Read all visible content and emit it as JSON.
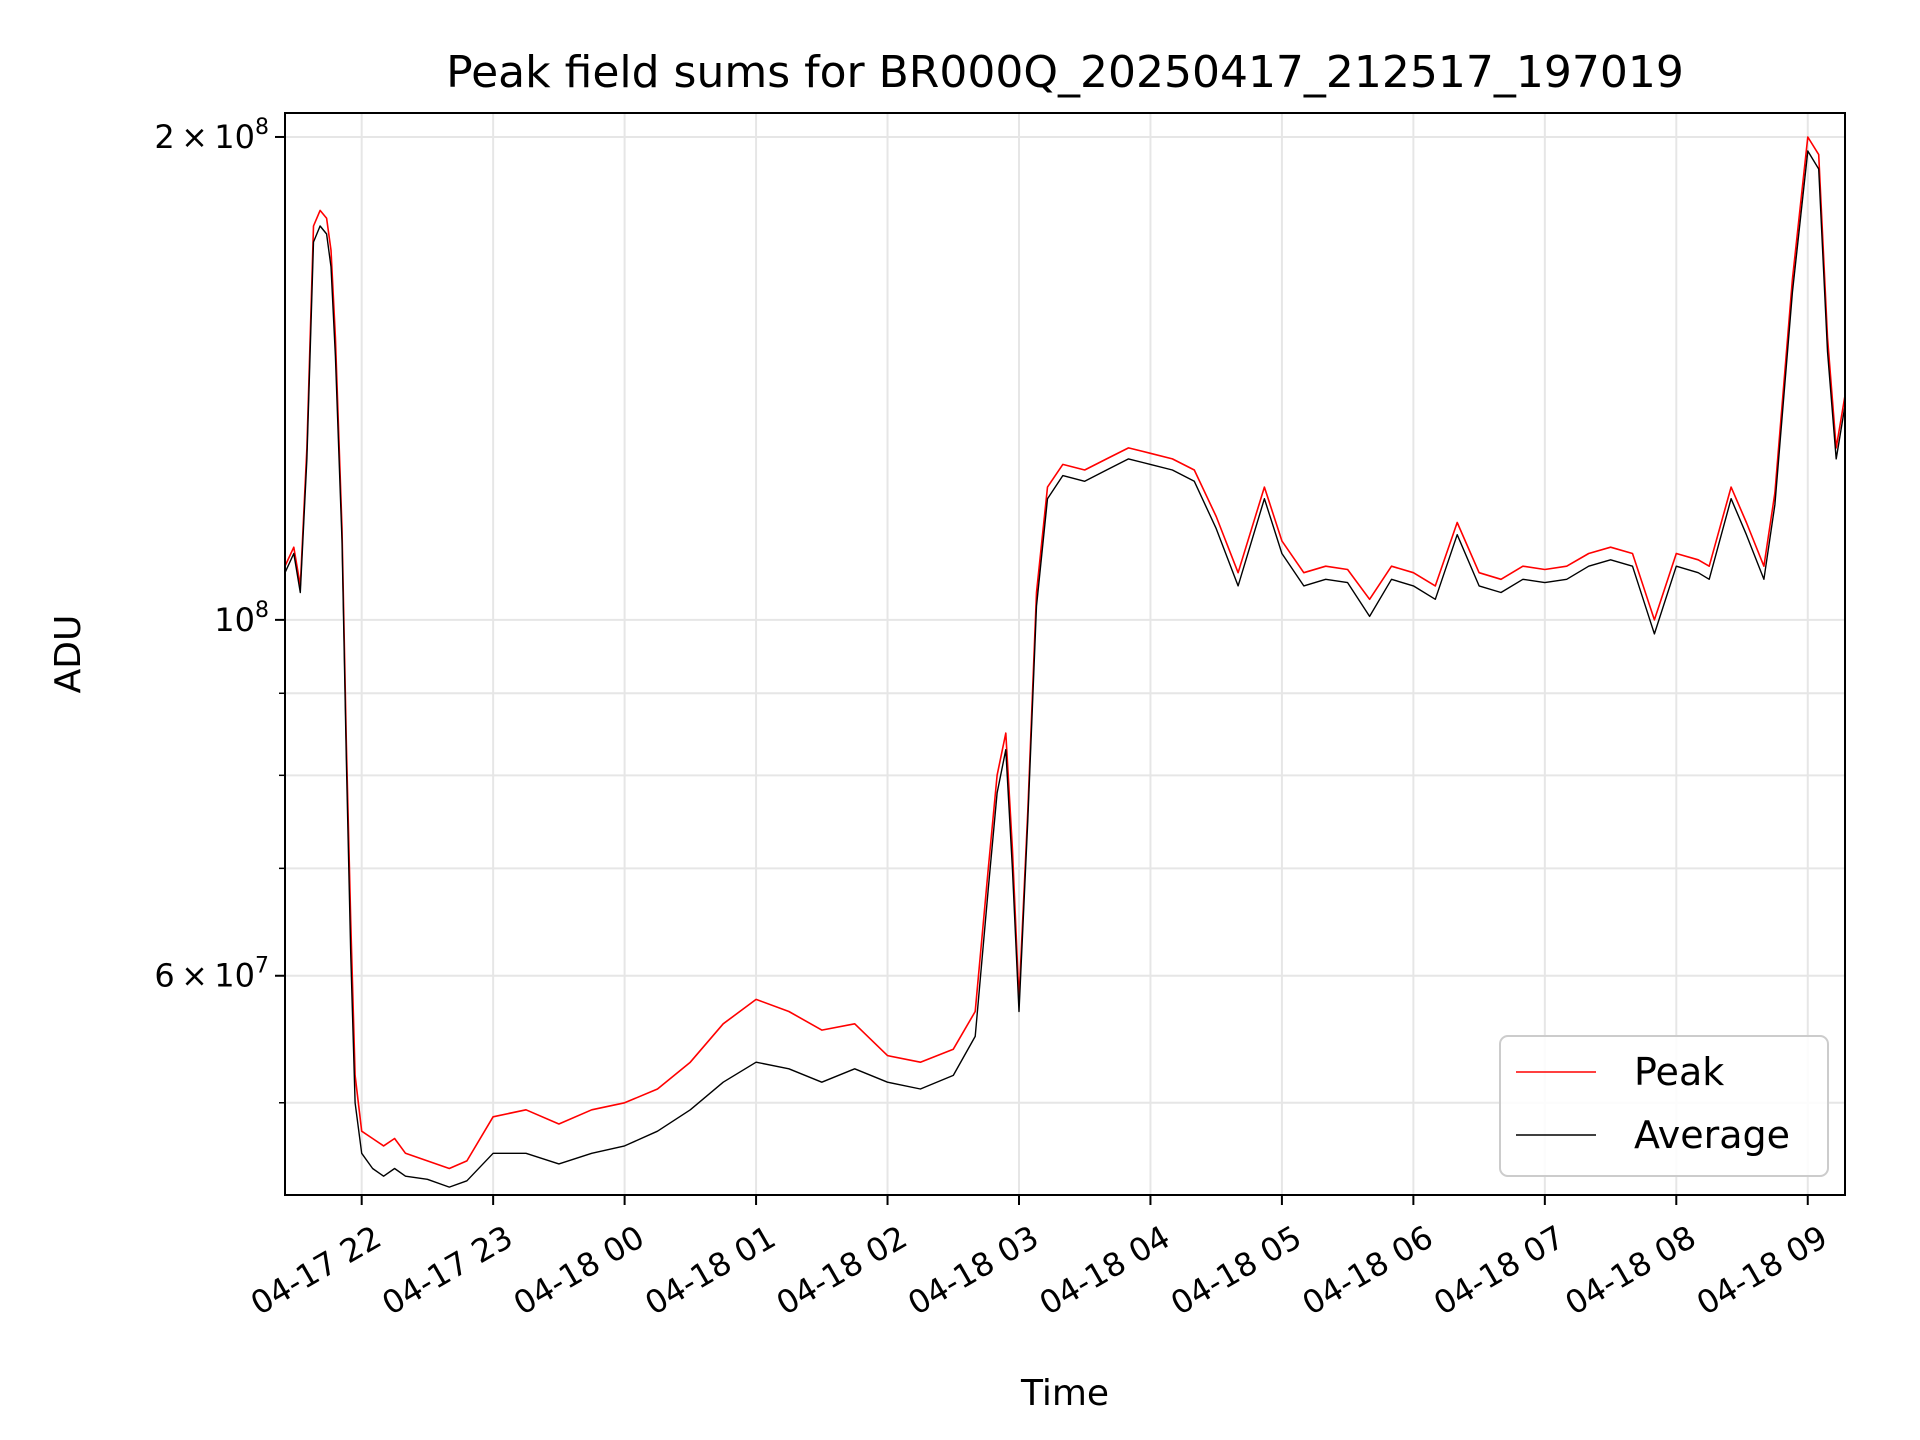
{
  "chart_data": {
    "type": "line",
    "title": "Peak field sums for BR000Q_20250417_212517_197019",
    "xlabel": "Time",
    "ylabel": "ADU",
    "y_scale": "log",
    "grid": true,
    "legend_position": "lower-right",
    "xlim": [
      "2025-04-17 21:25",
      "2025-04-18 09:17"
    ],
    "ylim": [
      43800000,
      207000000
    ],
    "x_ticks": [
      {
        "value": "2025-04-17 22:00",
        "label": "04-17 22"
      },
      {
        "value": "2025-04-17 23:00",
        "label": "04-17 23"
      },
      {
        "value": "2025-04-18 00:00",
        "label": "04-18 00"
      },
      {
        "value": "2025-04-18 01:00",
        "label": "04-18 01"
      },
      {
        "value": "2025-04-18 02:00",
        "label": "04-18 02"
      },
      {
        "value": "2025-04-18 03:00",
        "label": "04-18 03"
      },
      {
        "value": "2025-04-18 04:00",
        "label": "04-18 04"
      },
      {
        "value": "2025-04-18 05:00",
        "label": "04-18 05"
      },
      {
        "value": "2025-04-18 06:00",
        "label": "04-18 06"
      },
      {
        "value": "2025-04-18 07:00",
        "label": "04-18 07"
      },
      {
        "value": "2025-04-18 08:00",
        "label": "04-18 08"
      },
      {
        "value": "2025-04-18 09:00",
        "label": "04-18 09"
      }
    ],
    "y_major_ticks": [
      {
        "value": 60000000,
        "mantissa": "6",
        "exponent": "7"
      },
      {
        "value": 100000000,
        "mantissa": "",
        "exponent": "8"
      },
      {
        "value": 200000000,
        "mantissa": "2",
        "exponent": "8"
      }
    ],
    "y_minor_ticks": [
      50000000,
      70000000,
      80000000,
      90000000
    ],
    "times_multiply": "×",
    "times_base": "10",
    "colors": {
      "peak": "#ff0000",
      "average": "#000000",
      "grid": "#e6e6e6"
    },
    "series": [
      {
        "name": "Peak",
        "color": "#ff0000",
        "points": [
          [
            "2025-04-17 21:25",
            108000000
          ],
          [
            "2025-04-17 21:29",
            111000000
          ],
          [
            "2025-04-17 21:32",
            105000000
          ],
          [
            "2025-04-17 21:35",
            128000000
          ],
          [
            "2025-04-17 21:38",
            176000000
          ],
          [
            "2025-04-17 21:41",
            180000000
          ],
          [
            "2025-04-17 21:44",
            178000000
          ],
          [
            "2025-04-17 21:46",
            170000000
          ],
          [
            "2025-04-17 21:48",
            150000000
          ],
          [
            "2025-04-17 21:51",
            114000000
          ],
          [
            "2025-04-17 21:53",
            84000000
          ],
          [
            "2025-04-17 21:55",
            65000000
          ],
          [
            "2025-04-17 21:57",
            52000000
          ],
          [
            "2025-04-17 22:00",
            48000000
          ],
          [
            "2025-04-17 22:05",
            47500000
          ],
          [
            "2025-04-17 22:10",
            47000000
          ],
          [
            "2025-04-17 22:15",
            47500000
          ],
          [
            "2025-04-17 22:20",
            46500000
          ],
          [
            "2025-04-17 22:30",
            46000000
          ],
          [
            "2025-04-17 22:40",
            45500000
          ],
          [
            "2025-04-17 22:48",
            46000000
          ],
          [
            "2025-04-17 23:00",
            49000000
          ],
          [
            "2025-04-17 23:15",
            49500000
          ],
          [
            "2025-04-17 23:30",
            48500000
          ],
          [
            "2025-04-17 23:45",
            49500000
          ],
          [
            "2025-04-18 00:00",
            50000000
          ],
          [
            "2025-04-18 00:15",
            51000000
          ],
          [
            "2025-04-18 00:30",
            53000000
          ],
          [
            "2025-04-18 00:45",
            56000000
          ],
          [
            "2025-04-18 01:00",
            58000000
          ],
          [
            "2025-04-18 01:15",
            57000000
          ],
          [
            "2025-04-18 01:30",
            55500000
          ],
          [
            "2025-04-18 01:45",
            56000000
          ],
          [
            "2025-04-18 02:00",
            53500000
          ],
          [
            "2025-04-18 02:15",
            53000000
          ],
          [
            "2025-04-18 02:30",
            54000000
          ],
          [
            "2025-04-18 02:40",
            57000000
          ],
          [
            "2025-04-18 02:46",
            70000000
          ],
          [
            "2025-04-18 02:50",
            80000000
          ],
          [
            "2025-04-18 02:54",
            85000000
          ],
          [
            "2025-04-18 02:57",
            72000000
          ],
          [
            "2025-04-18 03:00",
            58000000
          ],
          [
            "2025-04-18 03:04",
            76000000
          ],
          [
            "2025-04-18 03:08",
            104000000
          ],
          [
            "2025-04-18 03:13",
            121000000
          ],
          [
            "2025-04-18 03:20",
            125000000
          ],
          [
            "2025-04-18 03:30",
            124000000
          ],
          [
            "2025-04-18 03:40",
            126000000
          ],
          [
            "2025-04-18 03:50",
            128000000
          ],
          [
            "2025-04-18 04:00",
            127000000
          ],
          [
            "2025-04-18 04:10",
            126000000
          ],
          [
            "2025-04-18 04:20",
            124000000
          ],
          [
            "2025-04-18 04:30",
            116000000
          ],
          [
            "2025-04-18 04:40",
            107000000
          ],
          [
            "2025-04-18 04:52",
            121000000
          ],
          [
            "2025-04-18 05:00",
            112000000
          ],
          [
            "2025-04-18 05:10",
            107000000
          ],
          [
            "2025-04-18 05:20",
            108000000
          ],
          [
            "2025-04-18 05:30",
            107500000
          ],
          [
            "2025-04-18 05:40",
            103000000
          ],
          [
            "2025-04-18 05:50",
            108000000
          ],
          [
            "2025-04-18 06:00",
            107000000
          ],
          [
            "2025-04-18 06:10",
            105000000
          ],
          [
            "2025-04-18 06:20",
            115000000
          ],
          [
            "2025-04-18 06:30",
            107000000
          ],
          [
            "2025-04-18 06:40",
            106000000
          ],
          [
            "2025-04-18 06:50",
            108000000
          ],
          [
            "2025-04-18 07:00",
            107500000
          ],
          [
            "2025-04-18 07:10",
            108000000
          ],
          [
            "2025-04-18 07:20",
            110000000
          ],
          [
            "2025-04-18 07:30",
            111000000
          ],
          [
            "2025-04-18 07:40",
            110000000
          ],
          [
            "2025-04-18 07:50",
            100000000
          ],
          [
            "2025-04-18 08:00",
            110000000
          ],
          [
            "2025-04-18 08:10",
            109000000
          ],
          [
            "2025-04-18 08:15",
            108000000
          ],
          [
            "2025-04-18 08:25",
            121000000
          ],
          [
            "2025-04-18 08:32",
            115000000
          ],
          [
            "2025-04-18 08:40",
            108000000
          ],
          [
            "2025-04-18 08:45",
            120000000
          ],
          [
            "2025-04-18 08:53",
            163000000
          ],
          [
            "2025-04-18 09:00",
            200000000
          ],
          [
            "2025-04-18 09:05",
            195000000
          ],
          [
            "2025-04-18 09:09",
            150000000
          ],
          [
            "2025-04-18 09:13",
            128000000
          ],
          [
            "2025-04-18 09:17",
            138000000
          ]
        ]
      },
      {
        "name": "Average",
        "color": "#000000",
        "points": [
          [
            "2025-04-17 21:25",
            107000000
          ],
          [
            "2025-04-17 21:29",
            110000000
          ],
          [
            "2025-04-17 21:32",
            104000000
          ],
          [
            "2025-04-17 21:35",
            126000000
          ],
          [
            "2025-04-17 21:38",
            172000000
          ],
          [
            "2025-04-17 21:41",
            176000000
          ],
          [
            "2025-04-17 21:44",
            174000000
          ],
          [
            "2025-04-17 21:46",
            166000000
          ],
          [
            "2025-04-17 21:48",
            146000000
          ],
          [
            "2025-04-17 21:51",
            112000000
          ],
          [
            "2025-04-17 21:53",
            82000000
          ],
          [
            "2025-04-17 21:55",
            62000000
          ],
          [
            "2025-04-17 21:57",
            50000000
          ],
          [
            "2025-04-17 22:00",
            46500000
          ],
          [
            "2025-04-17 22:05",
            45500000
          ],
          [
            "2025-04-17 22:10",
            45000000
          ],
          [
            "2025-04-17 22:15",
            45500000
          ],
          [
            "2025-04-17 22:20",
            45000000
          ],
          [
            "2025-04-17 22:30",
            44800000
          ],
          [
            "2025-04-17 22:40",
            44300000
          ],
          [
            "2025-04-17 22:48",
            44700000
          ],
          [
            "2025-04-17 23:00",
            46500000
          ],
          [
            "2025-04-17 23:15",
            46500000
          ],
          [
            "2025-04-17 23:30",
            45800000
          ],
          [
            "2025-04-17 23:45",
            46500000
          ],
          [
            "2025-04-18 00:00",
            47000000
          ],
          [
            "2025-04-18 00:15",
            48000000
          ],
          [
            "2025-04-18 00:30",
            49500000
          ],
          [
            "2025-04-18 00:45",
            51500000
          ],
          [
            "2025-04-18 01:00",
            53000000
          ],
          [
            "2025-04-18 01:15",
            52500000
          ],
          [
            "2025-04-18 01:30",
            51500000
          ],
          [
            "2025-04-18 01:45",
            52500000
          ],
          [
            "2025-04-18 02:00",
            51500000
          ],
          [
            "2025-04-18 02:15",
            51000000
          ],
          [
            "2025-04-18 02:30",
            52000000
          ],
          [
            "2025-04-18 02:40",
            55000000
          ],
          [
            "2025-04-18 02:46",
            68000000
          ],
          [
            "2025-04-18 02:50",
            78000000
          ],
          [
            "2025-04-18 02:54",
            83000000
          ],
          [
            "2025-04-18 02:57",
            70000000
          ],
          [
            "2025-04-18 03:00",
            57000000
          ],
          [
            "2025-04-18 03:04",
            75000000
          ],
          [
            "2025-04-18 03:08",
            102000000
          ],
          [
            "2025-04-18 03:13",
            119000000
          ],
          [
            "2025-04-18 03:20",
            123000000
          ],
          [
            "2025-04-18 03:30",
            122000000
          ],
          [
            "2025-04-18 03:40",
            124000000
          ],
          [
            "2025-04-18 03:50",
            126000000
          ],
          [
            "2025-04-18 04:00",
            125000000
          ],
          [
            "2025-04-18 04:10",
            124000000
          ],
          [
            "2025-04-18 04:20",
            122000000
          ],
          [
            "2025-04-18 04:30",
            114000000
          ],
          [
            "2025-04-18 04:40",
            105000000
          ],
          [
            "2025-04-18 04:52",
            119000000
          ],
          [
            "2025-04-18 05:00",
            110000000
          ],
          [
            "2025-04-18 05:10",
            105000000
          ],
          [
            "2025-04-18 05:20",
            106000000
          ],
          [
            "2025-04-18 05:30",
            105500000
          ],
          [
            "2025-04-18 05:40",
            100500000
          ],
          [
            "2025-04-18 05:50",
            106000000
          ],
          [
            "2025-04-18 06:00",
            105000000
          ],
          [
            "2025-04-18 06:10",
            103000000
          ],
          [
            "2025-04-18 06:20",
            113000000
          ],
          [
            "2025-04-18 06:30",
            105000000
          ],
          [
            "2025-04-18 06:40",
            104000000
          ],
          [
            "2025-04-18 06:50",
            106000000
          ],
          [
            "2025-04-18 07:00",
            105500000
          ],
          [
            "2025-04-18 07:10",
            106000000
          ],
          [
            "2025-04-18 07:20",
            108000000
          ],
          [
            "2025-04-18 07:30",
            109000000
          ],
          [
            "2025-04-18 07:40",
            108000000
          ],
          [
            "2025-04-18 07:50",
            98000000
          ],
          [
            "2025-04-18 08:00",
            108000000
          ],
          [
            "2025-04-18 08:10",
            107000000
          ],
          [
            "2025-04-18 08:15",
            106000000
          ],
          [
            "2025-04-18 08:25",
            119000000
          ],
          [
            "2025-04-18 08:32",
            113000000
          ],
          [
            "2025-04-18 08:40",
            106000000
          ],
          [
            "2025-04-18 08:45",
            118000000
          ],
          [
            "2025-04-18 08:53",
            160000000
          ],
          [
            "2025-04-18 09:00",
            196000000
          ],
          [
            "2025-04-18 09:05",
            191000000
          ],
          [
            "2025-04-18 09:09",
            147000000
          ],
          [
            "2025-04-18 09:13",
            126000000
          ],
          [
            "2025-04-18 09:17",
            136000000
          ]
        ]
      }
    ]
  }
}
